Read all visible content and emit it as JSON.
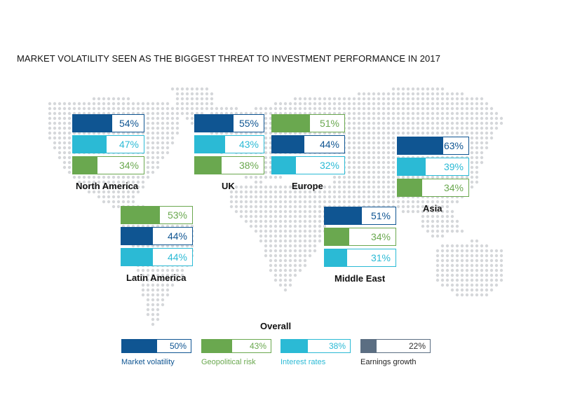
{
  "title": "MARKET VOLATILITY  SEEN AS THE BIGGEST THREAT TO INVESTMENT PERFORMANCE IN 2017",
  "colors": {
    "market_volatility": "#0f5592",
    "geopolitical_risk": "#6aa84f",
    "interest_rates": "#2bbad5",
    "earnings_growth": "#5b6e82",
    "map_dots": "#d5d7da"
  },
  "chart_data": {
    "type": "bar",
    "unit": "%",
    "title": "MARKET VOLATILITY  SEEN AS THE BIGGEST THREAT TO INVESTMENT PERFORMANCE IN 2017",
    "categories": [
      "Market volatility",
      "Geopolitical risk",
      "Interest rates",
      "Earnings growth"
    ],
    "regions": [
      {
        "name": "North America",
        "bars": [
          {
            "category": "Market volatility",
            "value": 54,
            "label": "54%"
          },
          {
            "category": "Interest rates",
            "value": 47,
            "label": "47%"
          },
          {
            "category": "Geopolitical risk",
            "value": 34,
            "label": "34%"
          }
        ]
      },
      {
        "name": "UK",
        "bars": [
          {
            "category": "Market volatility",
            "value": 55,
            "label": "55%"
          },
          {
            "category": "Interest rates",
            "value": 43,
            "label": "43%"
          },
          {
            "category": "Geopolitical risk",
            "value": 38,
            "label": "38%"
          }
        ]
      },
      {
        "name": "Europe",
        "bars": [
          {
            "category": "Geopolitical risk",
            "value": 51,
            "label": "51%"
          },
          {
            "category": "Market volatility",
            "value": 44,
            "label": "44%"
          },
          {
            "category": "Interest rates",
            "value": 32,
            "label": "32%"
          }
        ]
      },
      {
        "name": "Asia",
        "bars": [
          {
            "category": "Market volatility",
            "value": 63,
            "label": "63%"
          },
          {
            "category": "Interest rates",
            "value": 39,
            "label": "39%"
          },
          {
            "category": "Geopolitical risk",
            "value": 34,
            "label": "34%"
          }
        ]
      },
      {
        "name": "Latin America",
        "bars": [
          {
            "category": "Geopolitical risk",
            "value": 53,
            "label": "53%"
          },
          {
            "category": "Market volatility",
            "value": 44,
            "label": "44%"
          },
          {
            "category": "Interest rates",
            "value": 44,
            "label": "44%"
          }
        ]
      },
      {
        "name": "Middle East",
        "bars": [
          {
            "category": "Market volatility",
            "value": 51,
            "label": "51%"
          },
          {
            "category": "Geopolitical risk",
            "value": 34,
            "label": "34%"
          },
          {
            "category": "Interest rates",
            "value": 31,
            "label": "31%"
          }
        ]
      }
    ],
    "overall": {
      "title": "Overall",
      "bars": [
        {
          "category": "Market volatility",
          "value": 50,
          "label": "50%"
        },
        {
          "category": "Geopolitical risk",
          "value": 43,
          "label": "43%"
        },
        {
          "category": "Interest rates",
          "value": 38,
          "label": "38%"
        },
        {
          "category": "Earnings growth",
          "value": 22,
          "label": "22%"
        }
      ]
    }
  }
}
